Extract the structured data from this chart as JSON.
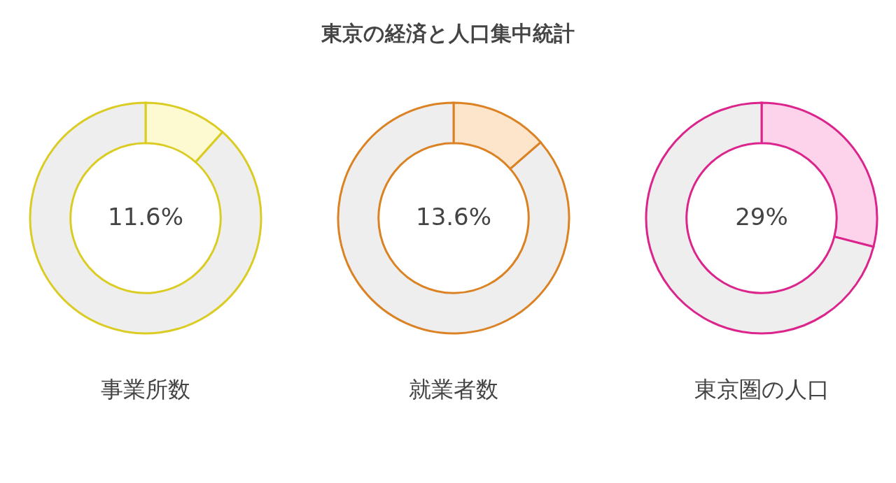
{
  "chart_data": [
    {
      "type": "other",
      "title": "東京の経済と人口集中統計"
    },
    {
      "type": "donut",
      "xlabel": "事業所数",
      "categories": [
        null,
        null
      ],
      "values": [
        11.6,
        88.4
      ],
      "colors": [
        "#fdf9d0",
        "#eeeeee"
      ],
      "value_labels": [
        "11.6%",
        null
      ]
    },
    {
      "type": "donut",
      "xlabel": "就業者数",
      "categories": [
        null,
        null
      ],
      "values": [
        13.6,
        86.4
      ],
      "colors": [
        "#fde5cc",
        "#eeeeee"
      ],
      "value_labels": [
        "13.6%",
        null
      ]
    },
    {
      "type": "donut",
      "xlabel": "東京圏の人口",
      "categories": [
        null,
        null
      ],
      "values": [
        29,
        71
      ],
      "colors": [
        "#fcd3ea",
        "#eeeeee"
      ],
      "value_labels": [
        "29%",
        null
      ]
    }
  ]
}
